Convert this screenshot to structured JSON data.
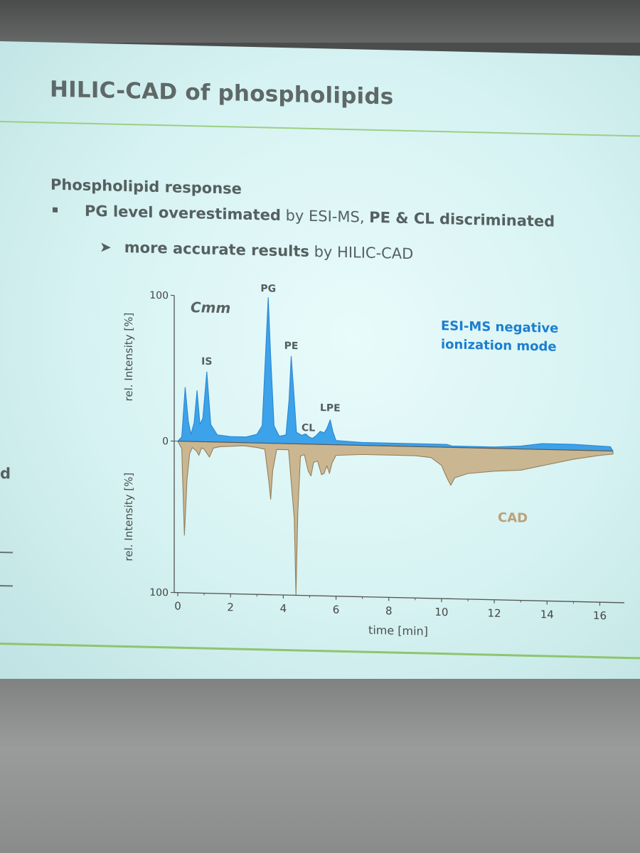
{
  "slide": {
    "title": "HILIC-CAD of phospholipids",
    "subheading": "Phospholipid response",
    "bullet": {
      "bold_1": "PG level overestimated",
      "text_1": " by ESI-MS, ",
      "bold_2": "PE & CL discriminated"
    },
    "sub_bullet": {
      "bold": "more accurate results",
      "text": " by HILIC-CAD"
    },
    "left_fragment": "d"
  },
  "chart_data": {
    "type": "area",
    "title": "Cmm",
    "xlabel": "time [min]",
    "ylabel_top": "rel. Intensity [%]",
    "ylabel_bottom": "rel. Intensity [%]",
    "xlim": [
      0,
      16.5
    ],
    "x_ticks": [
      0,
      2,
      4,
      6,
      8,
      10,
      12,
      14,
      16
    ],
    "y_ticks_top": [
      0,
      100
    ],
    "y_ticks_bottom": [
      0,
      100
    ],
    "y_tick_labels_top": [
      "0",
      "100"
    ],
    "y_tick_labels_bottom": [
      "0",
      "100"
    ],
    "grid": false,
    "colors": {
      "esi": "#2f9be8",
      "esi_line": "#1b7fd0",
      "cad": "#c9b48d",
      "cad_line": "#8f7a55",
      "axis": "#555555"
    },
    "series": [
      {
        "name": "ESI-MS negative ionization mode",
        "label_lines": [
          "ESI-MS negative",
          "ionization mode"
        ],
        "direction": "up",
        "points": [
          [
            0,
            0
          ],
          [
            0.15,
            3
          ],
          [
            0.28,
            37
          ],
          [
            0.4,
            14
          ],
          [
            0.5,
            5
          ],
          [
            0.62,
            13
          ],
          [
            0.73,
            35
          ],
          [
            0.84,
            12
          ],
          [
            0.95,
            16
          ],
          [
            1.1,
            48
          ],
          [
            1.25,
            12
          ],
          [
            1.5,
            5
          ],
          [
            2.0,
            4
          ],
          [
            2.6,
            4
          ],
          [
            3.0,
            6
          ],
          [
            3.2,
            12
          ],
          [
            3.35,
            70
          ],
          [
            3.43,
            100
          ],
          [
            3.52,
            60
          ],
          [
            3.65,
            12
          ],
          [
            3.85,
            5
          ],
          [
            4.1,
            6
          ],
          [
            4.22,
            30
          ],
          [
            4.3,
            60
          ],
          [
            4.4,
            35
          ],
          [
            4.5,
            8
          ],
          [
            4.7,
            6
          ],
          [
            4.85,
            7
          ],
          [
            4.98,
            5
          ],
          [
            5.1,
            4
          ],
          [
            5.25,
            6
          ],
          [
            5.4,
            9
          ],
          [
            5.55,
            8
          ],
          [
            5.65,
            11
          ],
          [
            5.78,
            17
          ],
          [
            5.88,
            9
          ],
          [
            6.0,
            3
          ],
          [
            7.0,
            2
          ],
          [
            9.0,
            2
          ],
          [
            10.2,
            2
          ],
          [
            10.4,
            1
          ],
          [
            12.0,
            1
          ],
          [
            13.0,
            2
          ],
          [
            13.8,
            4
          ],
          [
            15.0,
            4
          ],
          [
            16.4,
            3
          ],
          [
            16.5,
            0
          ]
        ]
      },
      {
        "name": "CAD",
        "direction": "down",
        "points": [
          [
            0,
            0
          ],
          [
            0.15,
            5
          ],
          [
            0.25,
            62
          ],
          [
            0.35,
            25
          ],
          [
            0.45,
            8
          ],
          [
            0.55,
            4
          ],
          [
            0.7,
            6
          ],
          [
            0.8,
            9
          ],
          [
            0.9,
            4
          ],
          [
            1.0,
            5
          ],
          [
            1.2,
            10
          ],
          [
            1.35,
            4
          ],
          [
            1.6,
            3
          ],
          [
            2.5,
            2
          ],
          [
            3.0,
            3
          ],
          [
            3.3,
            4
          ],
          [
            3.45,
            25
          ],
          [
            3.52,
            37
          ],
          [
            3.6,
            18
          ],
          [
            3.75,
            4
          ],
          [
            4.0,
            4
          ],
          [
            4.2,
            4
          ],
          [
            4.42,
            50
          ],
          [
            4.48,
            100
          ],
          [
            4.55,
            45
          ],
          [
            4.65,
            8
          ],
          [
            4.8,
            7
          ],
          [
            4.95,
            18
          ],
          [
            5.05,
            21
          ],
          [
            5.15,
            12
          ],
          [
            5.3,
            11
          ],
          [
            5.45,
            20
          ],
          [
            5.55,
            19
          ],
          [
            5.65,
            14
          ],
          [
            5.75,
            19
          ],
          [
            5.85,
            12
          ],
          [
            6.0,
            7
          ],
          [
            7.0,
            6
          ],
          [
            8.0,
            6
          ],
          [
            9.0,
            6
          ],
          [
            9.6,
            7
          ],
          [
            10.0,
            12
          ],
          [
            10.2,
            20
          ],
          [
            10.35,
            25
          ],
          [
            10.5,
            20
          ],
          [
            11.0,
            17
          ],
          [
            12.0,
            15
          ],
          [
            13.0,
            14
          ],
          [
            14.0,
            10
          ],
          [
            15.0,
            6
          ],
          [
            16.0,
            3
          ],
          [
            16.5,
            2
          ],
          [
            16.5,
            0
          ]
        ]
      }
    ],
    "annotations": [
      {
        "label": "PG",
        "x": 3.43,
        "y": 104
      },
      {
        "label": "PE",
        "x": 4.3,
        "y": 65
      },
      {
        "label": "IS",
        "x": 1.1,
        "y": 53
      },
      {
        "label": "CL",
        "x": 4.95,
        "y": 9
      },
      {
        "label": "LPE",
        "x": 5.78,
        "y": 23
      }
    ],
    "cad_label": "CAD"
  }
}
